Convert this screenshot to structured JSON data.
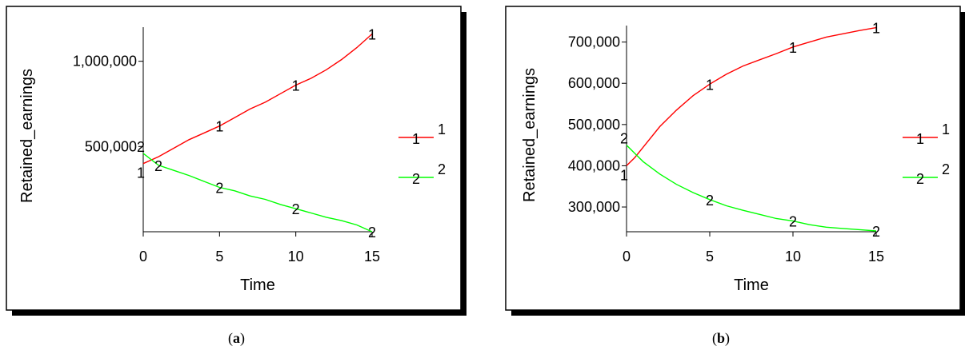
{
  "colors": {
    "series1": "#ff0000",
    "series2": "#00ff00",
    "axis": "#000000",
    "frame": "#000000",
    "shadow": "#000000"
  },
  "captions": [
    {
      "open": "(",
      "letter": "a",
      "close": ")"
    },
    {
      "open": "(",
      "letter": "b",
      "close": ")"
    }
  ],
  "chart_data": [
    {
      "type": "line",
      "xlabel": "Time",
      "ylabel": "Retained_earnings",
      "xlim": [
        0,
        15
      ],
      "ylim": [
        0,
        1200000
      ],
      "xticks": [
        0,
        5,
        10,
        15
      ],
      "xtick_labels": [
        "0",
        "5",
        "10",
        "15"
      ],
      "yticks": [
        500000,
        1000000
      ],
      "ytick_labels": [
        "500,000",
        "1,000,000"
      ],
      "grid": false,
      "legend": "right",
      "series": [
        {
          "name": "1",
          "marker": "1",
          "x": [
            0,
            1,
            2,
            3,
            4,
            5,
            6,
            7,
            8,
            9,
            10,
            11,
            12,
            13,
            14,
            15
          ],
          "y": [
            400000,
            440000,
            490000,
            540000,
            580000,
            620000,
            670000,
            720000,
            760000,
            810000,
            860000,
            900000,
            950000,
            1010000,
            1080000,
            1160000
          ],
          "marker_x": [
            5,
            10,
            15
          ]
        },
        {
          "name": "2",
          "marker": "2",
          "x": [
            0,
            1,
            2,
            3,
            4,
            5,
            6,
            7,
            8,
            9,
            10,
            11,
            12,
            13,
            14,
            15
          ],
          "y": [
            460000,
            390000,
            360000,
            330000,
            295000,
            260000,
            240000,
            210000,
            190000,
            160000,
            135000,
            110000,
            85000,
            65000,
            40000,
            0
          ],
          "marker_x": [
            1,
            5,
            10,
            15
          ]
        }
      ]
    },
    {
      "type": "line",
      "xlabel": "Time",
      "ylabel": "Retained_earnings",
      "xlim": [
        0,
        15
      ],
      "ylim": [
        240000,
        740000
      ],
      "xticks": [
        0,
        5,
        10,
        15
      ],
      "xtick_labels": [
        "0",
        "5",
        "10",
        "15"
      ],
      "yticks": [
        300000,
        400000,
        500000,
        600000,
        700000
      ],
      "ytick_labels": [
        "300,000",
        "400,000",
        "500,000",
        "600,000",
        "700,000"
      ],
      "grid": false,
      "legend": "right",
      "series": [
        {
          "name": "1",
          "marker": "1",
          "x": [
            0,
            0.5,
            1,
            2,
            3,
            4,
            5,
            6,
            7,
            8,
            9,
            10,
            11,
            12,
            13,
            14,
            15
          ],
          "y": [
            400000,
            420000,
            445000,
            495000,
            535000,
            570000,
            598000,
            622000,
            642000,
            657000,
            672000,
            688000,
            700000,
            712000,
            720000,
            728000,
            735000
          ],
          "marker_x": [
            5,
            10,
            15
          ]
        },
        {
          "name": "2",
          "marker": "2",
          "x": [
            0,
            0.5,
            1,
            2,
            3,
            4,
            5,
            6,
            7,
            8,
            9,
            10,
            11,
            12,
            13,
            14,
            15
          ],
          "y": [
            450000,
            430000,
            410000,
            380000,
            355000,
            335000,
            318000,
            303000,
            292000,
            282000,
            272000,
            266000,
            257000,
            251000,
            248000,
            245000,
            242000
          ],
          "marker_x": [
            5,
            10,
            15
          ]
        }
      ]
    }
  ]
}
